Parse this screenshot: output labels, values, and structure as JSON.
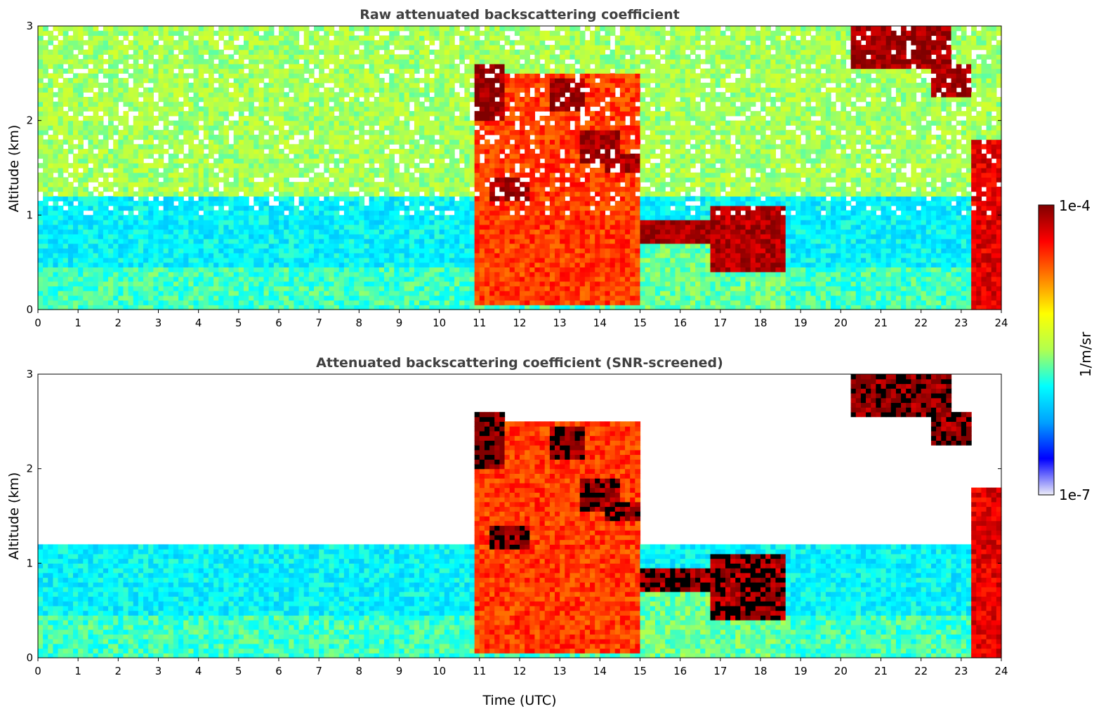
{
  "chart_data": [
    {
      "type": "heatmap",
      "title": "Raw attenuated backscattering coefficient",
      "xlabel": "",
      "ylabel": "Altitude (km)",
      "xlim": [
        0,
        24
      ],
      "ylim": [
        0,
        3
      ],
      "xticks": [
        "0",
        "1",
        "2",
        "3",
        "4",
        "5",
        "6",
        "7",
        "8",
        "9",
        "10",
        "11",
        "12",
        "13",
        "14",
        "15",
        "16",
        "17",
        "18",
        "19",
        "20",
        "21",
        "22",
        "23",
        "24"
      ],
      "yticks": [
        "0",
        "1",
        "2",
        "3"
      ],
      "screened": false,
      "layers": [
        {
          "x": [
            0,
            24
          ],
          "y": [
            0,
            0.45
          ],
          "value": 0.42
        },
        {
          "x": [
            0,
            24
          ],
          "y": [
            0.45,
            1.2
          ],
          "value": 0.36
        },
        {
          "x": [
            0,
            24
          ],
          "y": [
            1.2,
            3.0
          ],
          "value": 0.5
        },
        {
          "x": [
            10.9,
            15.0
          ],
          "y": [
            0.05,
            2.5
          ],
          "value": 0.82
        },
        {
          "x": [
            15.0,
            18.6
          ],
          "y": [
            0.0,
            0.8
          ],
          "value": 0.45
        }
      ],
      "cloud_layers": [
        {
          "x": [
            10.9,
            11.6
          ],
          "y": [
            2.0,
            2.6
          ],
          "value": 0.98
        },
        {
          "x": [
            11.3,
            12.3
          ],
          "y": [
            1.15,
            1.4
          ],
          "value": 0.97
        },
        {
          "x": [
            12.8,
            13.6
          ],
          "y": [
            2.1,
            2.45
          ],
          "value": 0.98
        },
        {
          "x": [
            13.5,
            14.5
          ],
          "y": [
            1.55,
            1.9
          ],
          "value": 0.97
        },
        {
          "x": [
            14.1,
            15.0
          ],
          "y": [
            1.45,
            1.65
          ],
          "value": 0.96
        },
        {
          "x": [
            15.0,
            16.8
          ],
          "y": [
            0.7,
            0.95
          ],
          "value": 0.96
        },
        {
          "x": [
            16.8,
            18.6
          ],
          "y": [
            0.4,
            1.1
          ],
          "value": 0.95
        },
        {
          "x": [
            20.3,
            22.7
          ],
          "y": [
            2.55,
            3.0
          ],
          "value": 0.97
        },
        {
          "x": [
            22.2,
            23.3
          ],
          "y": [
            2.25,
            2.6
          ],
          "value": 0.97
        },
        {
          "x": [
            23.2,
            24.0
          ],
          "y": [
            0.0,
            1.8
          ],
          "value": 0.9
        }
      ]
    },
    {
      "type": "heatmap",
      "title": "Attenuated backscattering coefficient (SNR-screened)",
      "xlabel": "Time (UTC)",
      "ylabel": "Altitude (km)",
      "xlim": [
        0,
        24
      ],
      "ylim": [
        0,
        3
      ],
      "xticks": [
        "0",
        "1",
        "2",
        "3",
        "4",
        "5",
        "6",
        "7",
        "8",
        "9",
        "10",
        "11",
        "12",
        "13",
        "14",
        "15",
        "16",
        "17",
        "18",
        "19",
        "20",
        "21",
        "22",
        "23",
        "24"
      ],
      "yticks": [
        "0",
        "1",
        "2",
        "3"
      ],
      "screened": true,
      "layers": [
        {
          "x": [
            0,
            24
          ],
          "y": [
            0,
            0.45
          ],
          "value": 0.42
        },
        {
          "x": [
            0,
            24
          ],
          "y": [
            0.45,
            1.2
          ],
          "value": 0.36
        },
        {
          "x": [
            10.9,
            15.0
          ],
          "y": [
            0.05,
            2.5
          ],
          "value": 0.82
        },
        {
          "x": [
            15.0,
            18.6
          ],
          "y": [
            0.0,
            0.8
          ],
          "value": 0.45
        }
      ],
      "cloud_layers": [
        {
          "x": [
            10.9,
            11.6
          ],
          "y": [
            2.0,
            2.6
          ],
          "value": 0.98
        },
        {
          "x": [
            11.3,
            12.3
          ],
          "y": [
            1.15,
            1.4
          ],
          "value": 0.97
        },
        {
          "x": [
            12.8,
            13.6
          ],
          "y": [
            2.1,
            2.45
          ],
          "value": 0.98
        },
        {
          "x": [
            13.5,
            14.5
          ],
          "y": [
            1.55,
            1.9
          ],
          "value": 0.97
        },
        {
          "x": [
            14.1,
            15.0
          ],
          "y": [
            1.45,
            1.65
          ],
          "value": 0.96
        },
        {
          "x": [
            15.0,
            16.8
          ],
          "y": [
            0.7,
            0.95
          ],
          "value": 0.96
        },
        {
          "x": [
            16.8,
            18.6
          ],
          "y": [
            0.4,
            1.1
          ],
          "value": 0.95
        },
        {
          "x": [
            20.3,
            22.7
          ],
          "y": [
            2.55,
            3.0
          ],
          "value": 0.97
        },
        {
          "x": [
            22.2,
            23.3
          ],
          "y": [
            2.25,
            2.6
          ],
          "value": 0.97
        },
        {
          "x": [
            23.2,
            24.0
          ],
          "y": [
            0.0,
            1.8
          ],
          "value": 0.9
        }
      ]
    }
  ],
  "colorbar": {
    "label": "1/m/sr",
    "max_label": "1e-4",
    "min_label": "1e-7",
    "colormap": "jet",
    "colors": [
      "#ececf8",
      "#0000ff",
      "#00a0ff",
      "#00ffff",
      "#b0ff50",
      "#ffff00",
      "#ff8000",
      "#ff0000",
      "#800000"
    ]
  }
}
